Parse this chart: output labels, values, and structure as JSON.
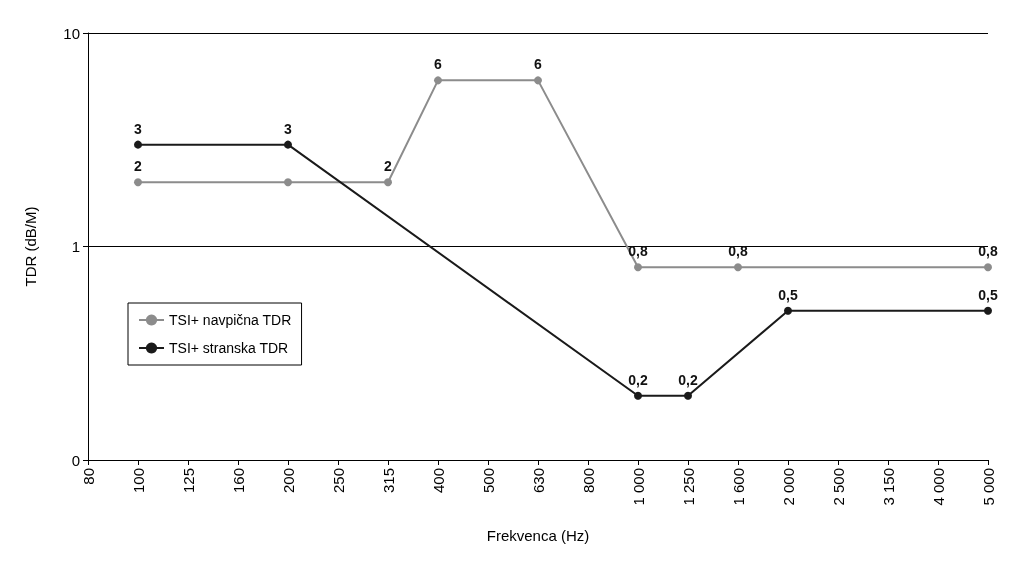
{
  "chart_data": {
    "type": "line",
    "xlabel": "Frekvenca (Hz)",
    "ylabel": "TDR (dB/M)",
    "categories": [
      "80",
      "100",
      "125",
      "160",
      "200",
      "250",
      "315",
      "400",
      "500",
      "630",
      "800",
      "1 000",
      "1 250",
      "1 600",
      "2 000",
      "2 500",
      "3 150",
      "4 000",
      "5 000"
    ],
    "series": [
      {
        "name": "TSI+ navpična TDR",
        "color": "#8c8c8c",
        "values": [
          null,
          2,
          null,
          null,
          2,
          null,
          2,
          6,
          null,
          6,
          null,
          0.8,
          null,
          0.8,
          null,
          null,
          null,
          null,
          0.8
        ],
        "value_labels": [
          null,
          "2",
          null,
          null,
          null,
          null,
          "2",
          "6",
          null,
          "6",
          null,
          "0,8",
          null,
          "0,8",
          null,
          null,
          null,
          null,
          "0,8"
        ]
      },
      {
        "name": "TSI+ stranska TDR",
        "color": "#1a1a1a",
        "values": [
          null,
          3,
          null,
          null,
          3,
          null,
          null,
          null,
          null,
          null,
          null,
          0.2,
          0.2,
          null,
          0.5,
          null,
          null,
          null,
          0.5
        ],
        "value_labels": [
          null,
          "3",
          null,
          null,
          "3",
          null,
          null,
          null,
          null,
          null,
          null,
          "0,2",
          "0,2",
          null,
          "0,5",
          null,
          null,
          null,
          "0,5"
        ]
      }
    ],
    "log": "y",
    "ylim": [
      0.1,
      10
    ],
    "yticks": [
      {
        "value": 0.1,
        "label": "0"
      },
      1,
      10
    ],
    "grid": "y",
    "legend": "left",
    "marker": "circle",
    "line_style": "solid"
  }
}
